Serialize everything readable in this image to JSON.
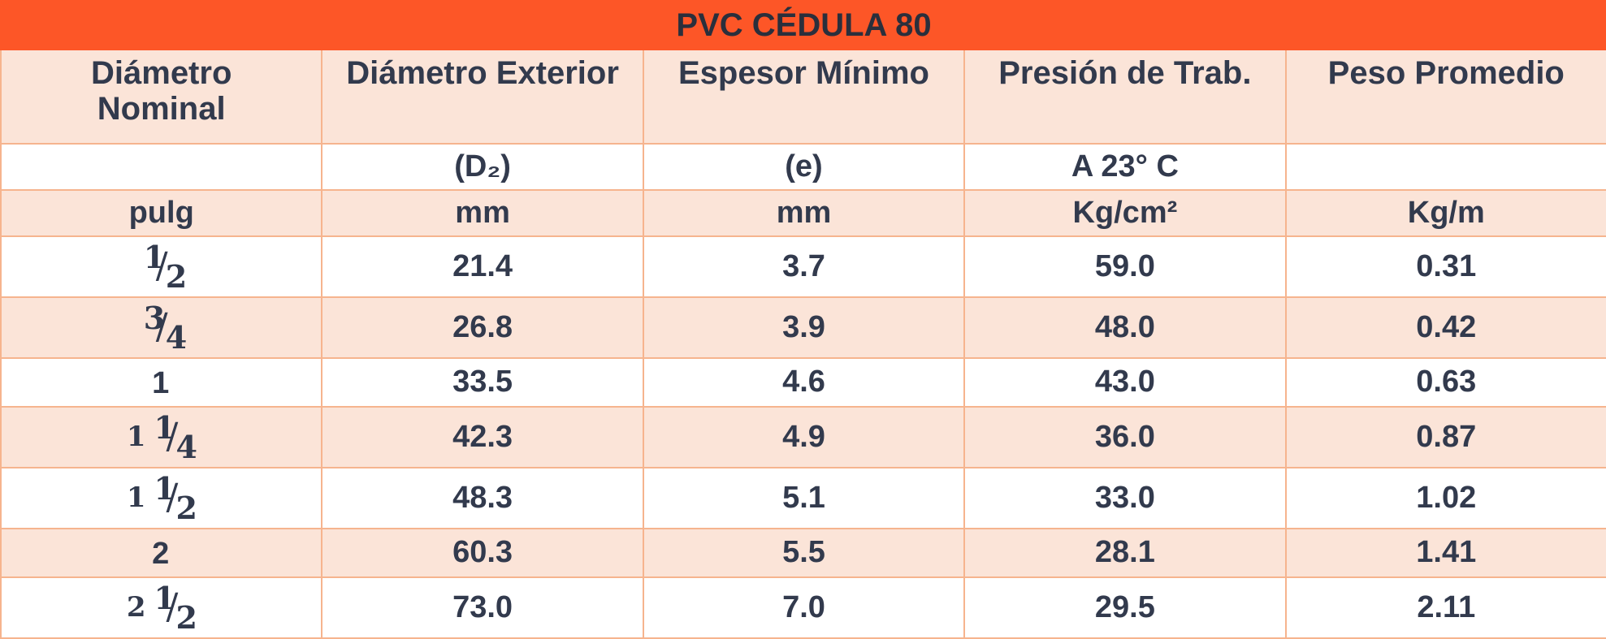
{
  "title": "PVC CÉDULA 80",
  "headers": [
    "Diámetro Nominal",
    "Diámetro Exterior",
    "Espesor Mínimo",
    "Presión de Trab.",
    "Peso Promedio"
  ],
  "subheaders": [
    "",
    "(D₂)",
    "(e)",
    "A 23° C",
    ""
  ],
  "units": [
    "pulg",
    "mm",
    "mm",
    "Kg/cm²",
    "Kg/m"
  ],
  "rows": [
    {
      "whole": "",
      "num": "1",
      "den": "2",
      "diam_ext": "21.4",
      "espesor": "3.7",
      "presion": "59.0",
      "peso": "0.31"
    },
    {
      "whole": "",
      "num": "3",
      "den": "4",
      "diam_ext": "26.8",
      "espesor": "3.9",
      "presion": "48.0",
      "peso": "0.42"
    },
    {
      "whole": "1",
      "num": "",
      "den": "",
      "diam_ext": "33.5",
      "espesor": "4.6",
      "presion": "43.0",
      "peso": "0.63"
    },
    {
      "whole": "1",
      "num": "1",
      "den": "4",
      "diam_ext": "42.3",
      "espesor": "4.9",
      "presion": "36.0",
      "peso": "0.87"
    },
    {
      "whole": "1",
      "num": "1",
      "den": "2",
      "diam_ext": "48.3",
      "espesor": "5.1",
      "presion": "33.0",
      "peso": "1.02"
    },
    {
      "whole": "2",
      "num": "",
      "den": "",
      "diam_ext": "60.3",
      "espesor": "5.5",
      "presion": "28.1",
      "peso": "1.41"
    },
    {
      "whole": "2",
      "num": "1",
      "den": "2",
      "diam_ext": "73.0",
      "espesor": "7.0",
      "presion": "29.5",
      "peso": "2.11"
    }
  ]
}
